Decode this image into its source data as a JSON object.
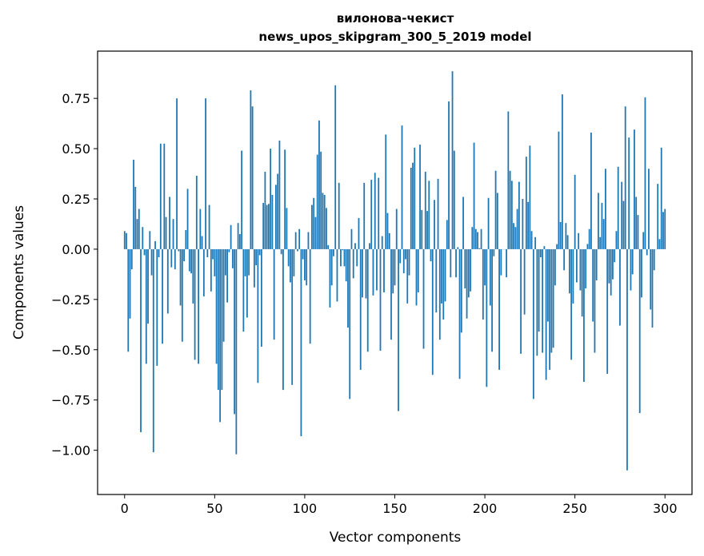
{
  "chart_data": {
    "type": "bar",
    "title": [
      "вилонова-чекист",
      "news_upos_skipgram_300_5_2019 model"
    ],
    "xlabel": "Vector components",
    "ylabel": "Components values",
    "xlim": [
      -15,
      315
    ],
    "ylim": [
      -1.22,
      0.985
    ],
    "grid": false,
    "color": "#1f77b4",
    "xticks": [
      0,
      50,
      100,
      150,
      200,
      250,
      300
    ],
    "xtick_labels": [
      "0",
      "50",
      "100",
      "150",
      "200",
      "250",
      "300"
    ],
    "yticks": [
      -1.0,
      -0.75,
      -0.5,
      -0.25,
      0.0,
      0.25,
      0.5,
      0.75
    ],
    "ytick_labels": [
      "−1.00",
      "−0.75",
      "−0.50",
      "−0.25",
      "0.00",
      "0.25",
      "0.50",
      "0.75"
    ],
    "values": [
      0.09,
      0.08,
      -0.51,
      -0.345,
      -0.1,
      0.445,
      0.31,
      0.15,
      0.2,
      -0.91,
      0.11,
      -0.03,
      -0.57,
      -0.37,
      0.09,
      -0.13,
      -1.01,
      0.04,
      -0.58,
      -0.04,
      0.525,
      -0.47,
      0.525,
      0.16,
      -0.32,
      0.26,
      -0.09,
      0.15,
      -0.1,
      0.75,
      -0.01,
      -0.28,
      -0.46,
      -0.06,
      0.095,
      0.3,
      -0.11,
      -0.12,
      -0.27,
      -0.55,
      0.365,
      -0.57,
      0.2,
      0.065,
      -0.235,
      0.75,
      -0.04,
      0.22,
      -0.21,
      -0.05,
      -0.135,
      -0.57,
      -0.7,
      -0.86,
      -0.7,
      -0.46,
      -0.13,
      -0.265,
      -0.015,
      0.12,
      -0.095,
      -0.82,
      -1.02,
      0.13,
      0.075,
      0.49,
      -0.41,
      -0.135,
      -0.34,
      -0.13,
      0.79,
      0.71,
      -0.19,
      -0.08,
      -0.665,
      -0.03,
      -0.485,
      0.23,
      0.385,
      0.22,
      0.225,
      0.5,
      0.27,
      -0.45,
      0.32,
      0.375,
      0.54,
      -0.025,
      -0.7,
      0.495,
      0.205,
      -0.085,
      -0.165,
      -0.675,
      -0.135,
      0.085,
      -0.01,
      0.1,
      -0.93,
      -0.05,
      -0.155,
      -0.18,
      0.085,
      -0.47,
      0.22,
      0.255,
      0.16,
      0.47,
      0.64,
      0.485,
      0.28,
      0.27,
      0.205,
      0.02,
      -0.29,
      -0.18,
      -0.035,
      0.815,
      -0.26,
      0.33,
      -0.085,
      -0.005,
      -0.085,
      -0.16,
      -0.39,
      -0.745,
      0.1,
      -0.145,
      0.03,
      -0.085,
      0.155,
      -0.6,
      -0.24,
      0.33,
      -0.245,
      -0.51,
      0.03,
      0.345,
      -0.23,
      0.38,
      -0.205,
      0.355,
      -0.505,
      0.065,
      -0.215,
      0.57,
      0.18,
      0.08,
      -0.45,
      -0.22,
      -0.18,
      0.2,
      -0.805,
      -0.07,
      0.615,
      -0.12,
      -0.05,
      -0.27,
      -0.13,
      0.405,
      0.43,
      0.505,
      -0.28,
      -0.215,
      0.52,
      0.195,
      -0.495,
      0.385,
      0.19,
      0.34,
      -0.06,
      -0.625,
      0.245,
      -0.315,
      0.35,
      -0.45,
      -0.27,
      -0.35,
      -0.26,
      0.145,
      0.735,
      -0.14,
      0.885,
      0.49,
      -0.14,
      0.01,
      -0.645,
      -0.415,
      0.26,
      -0.195,
      -0.345,
      -0.24,
      -0.21,
      0.11,
      0.53,
      0.1,
      0.085,
      0.005,
      0.1,
      -0.35,
      -0.18,
      -0.685,
      0.255,
      -0.28,
      -0.51,
      -0.035,
      0.39,
      0.28,
      -0.6,
      -0.13,
      0.0,
      0.0,
      -0.14,
      0.685,
      0.39,
      0.34,
      0.13,
      0.11,
      0.2,
      0.335,
      -0.52,
      0.25,
      -0.325,
      0.46,
      0.235,
      0.515,
      0.09,
      -0.745,
      0.06,
      -0.53,
      -0.41,
      -0.04,
      -0.515,
      0.015,
      -0.65,
      -0.36,
      -0.6,
      -0.515,
      -0.49,
      -0.18,
      0.025,
      0.585,
      0.135,
      0.77,
      -0.105,
      0.13,
      0.07,
      -0.22,
      -0.55,
      -0.27,
      0.37,
      -0.165,
      0.08,
      -0.205,
      -0.335,
      -0.66,
      -0.195,
      0.026,
      0.1,
      0.58,
      -0.36,
      -0.515,
      -0.155,
      0.28,
      0.06,
      0.23,
      0.15,
      0.4,
      -0.62,
      -0.17,
      -0.23,
      -0.15,
      -0.065,
      0.09,
      0.41,
      -0.38,
      0.335,
      0.24,
      0.71,
      -1.1,
      0.555,
      -0.205,
      -0.125,
      0.595,
      0.26,
      0.17,
      -0.815,
      -0.24,
      0.085,
      0.755,
      -0.03,
      0.4,
      -0.3,
      -0.39,
      -0.105,
      0.0,
      0.325,
      0.05,
      0.505,
      0.185,
      0.2
    ]
  }
}
